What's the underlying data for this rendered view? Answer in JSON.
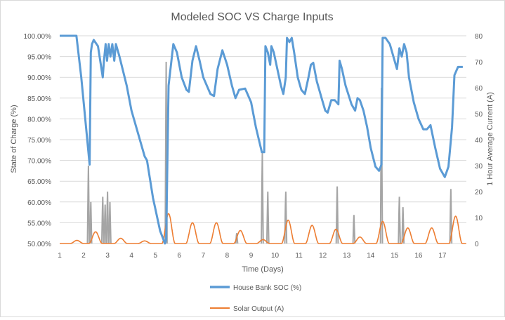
{
  "chart_data": {
    "type": "line",
    "title": "Modeled SOC VS Charge Inputs",
    "xlabel": "Time (Days)",
    "ylabel_left": "State of Charge (%)",
    "ylabel_right": "1 Hour Average Current (A)",
    "x_ticks": [
      "1",
      "2",
      "3",
      "4",
      "5",
      "6",
      "7",
      "8",
      "9",
      "10",
      "11",
      "12",
      "13",
      "14",
      "15",
      "16",
      "17"
    ],
    "xlim": [
      1,
      18
    ],
    "y_left_ticks": [
      "50.00%",
      "55.00%",
      "60.00%",
      "65.00%",
      "70.00%",
      "75.00%",
      "80.00%",
      "85.00%",
      "90.00%",
      "95.00%",
      "100.00%"
    ],
    "ylim_left": [
      0.5,
      1.0
    ],
    "y_right_ticks": [
      "0",
      "10",
      "20",
      "30",
      "40",
      "50",
      "60",
      "70",
      "80"
    ],
    "ylim_right": [
      0,
      80
    ],
    "grid": true,
    "legend_position": "bottom",
    "legend": [
      {
        "name": "House Bank SOC (%)",
        "color": "#5b9bd5"
      },
      {
        "name": "Solar Output (A)",
        "color": "#ed7d31"
      }
    ],
    "series": [
      {
        "name": "House Bank SOC (%)",
        "axis": "left",
        "color": "#5b9bd5",
        "points": [
          [
            1.0,
            1.0
          ],
          [
            1.7,
            1.0
          ],
          [
            1.9,
            0.9
          ],
          [
            2.1,
            0.78
          ],
          [
            2.2,
            0.72
          ],
          [
            2.25,
            0.69
          ],
          [
            2.3,
            0.96
          ],
          [
            2.35,
            0.98
          ],
          [
            2.42,
            0.99
          ],
          [
            2.6,
            0.975
          ],
          [
            2.72,
            0.93
          ],
          [
            2.8,
            0.9
          ],
          [
            2.85,
            0.94
          ],
          [
            2.92,
            0.98
          ],
          [
            2.98,
            0.94
          ],
          [
            3.05,
            0.98
          ],
          [
            3.12,
            0.95
          ],
          [
            3.2,
            0.98
          ],
          [
            3.28,
            0.94
          ],
          [
            3.35,
            0.98
          ],
          [
            3.5,
            0.95
          ],
          [
            3.8,
            0.88
          ],
          [
            4.0,
            0.82
          ],
          [
            4.3,
            0.76
          ],
          [
            4.55,
            0.71
          ],
          [
            4.65,
            0.7
          ],
          [
            4.9,
            0.61
          ],
          [
            5.2,
            0.53
          ],
          [
            5.4,
            0.5
          ],
          [
            5.45,
            0.51
          ],
          [
            5.55,
            0.88
          ],
          [
            5.75,
            0.98
          ],
          [
            5.9,
            0.96
          ],
          [
            6.1,
            0.9
          ],
          [
            6.3,
            0.87
          ],
          [
            6.4,
            0.865
          ],
          [
            6.55,
            0.94
          ],
          [
            6.7,
            0.975
          ],
          [
            6.85,
            0.94
          ],
          [
            7.0,
            0.9
          ],
          [
            7.3,
            0.86
          ],
          [
            7.45,
            0.855
          ],
          [
            7.6,
            0.92
          ],
          [
            7.8,
            0.965
          ],
          [
            8.0,
            0.93
          ],
          [
            8.2,
            0.88
          ],
          [
            8.35,
            0.85
          ],
          [
            8.5,
            0.87
          ],
          [
            8.75,
            0.873
          ],
          [
            9.0,
            0.84
          ],
          [
            9.2,
            0.78
          ],
          [
            9.45,
            0.72
          ],
          [
            9.55,
            0.72
          ],
          [
            9.6,
            0.975
          ],
          [
            9.7,
            0.96
          ],
          [
            9.8,
            0.93
          ],
          [
            9.85,
            0.975
          ],
          [
            9.95,
            0.96
          ],
          [
            10.1,
            0.92
          ],
          [
            10.25,
            0.88
          ],
          [
            10.35,
            0.86
          ],
          [
            10.45,
            0.9
          ],
          [
            10.5,
            0.995
          ],
          [
            10.6,
            0.985
          ],
          [
            10.7,
            0.995
          ],
          [
            10.8,
            0.96
          ],
          [
            10.95,
            0.9
          ],
          [
            11.1,
            0.87
          ],
          [
            11.25,
            0.86
          ],
          [
            11.4,
            0.9
          ],
          [
            11.5,
            0.93
          ],
          [
            11.6,
            0.935
          ],
          [
            11.75,
            0.89
          ],
          [
            11.95,
            0.85
          ],
          [
            12.1,
            0.82
          ],
          [
            12.2,
            0.815
          ],
          [
            12.35,
            0.845
          ],
          [
            12.5,
            0.845
          ],
          [
            12.65,
            0.835
          ],
          [
            12.7,
            0.94
          ],
          [
            12.8,
            0.92
          ],
          [
            12.95,
            0.88
          ],
          [
            13.2,
            0.835
          ],
          [
            13.35,
            0.82
          ],
          [
            13.45,
            0.85
          ],
          [
            13.55,
            0.845
          ],
          [
            13.7,
            0.82
          ],
          [
            13.85,
            0.78
          ],
          [
            14.0,
            0.73
          ],
          [
            14.2,
            0.685
          ],
          [
            14.35,
            0.675
          ],
          [
            14.45,
            0.69
          ],
          [
            14.5,
            0.995
          ],
          [
            14.62,
            0.995
          ],
          [
            14.8,
            0.98
          ],
          [
            14.95,
            0.95
          ],
          [
            15.1,
            0.92
          ],
          [
            15.2,
            0.97
          ],
          [
            15.3,
            0.95
          ],
          [
            15.4,
            0.98
          ],
          [
            15.5,
            0.96
          ],
          [
            15.6,
            0.9
          ],
          [
            15.8,
            0.84
          ],
          [
            16.0,
            0.8
          ],
          [
            16.2,
            0.775
          ],
          [
            16.35,
            0.775
          ],
          [
            16.5,
            0.785
          ],
          [
            16.7,
            0.73
          ],
          [
            16.9,
            0.68
          ],
          [
            17.1,
            0.66
          ],
          [
            17.25,
            0.685
          ],
          [
            17.4,
            0.78
          ],
          [
            17.5,
            0.905
          ],
          [
            17.65,
            0.925
          ],
          [
            17.85,
            0.925
          ]
        ]
      },
      {
        "name": "Solar Output (A)",
        "axis": "right",
        "color": "#ed7d31",
        "peaks": [
          [
            1.72,
            1.2
          ],
          [
            2.5,
            4.5
          ],
          [
            3.55,
            2.0
          ],
          [
            4.55,
            1.0
          ],
          [
            5.55,
            11.5
          ],
          [
            6.55,
            8.0
          ],
          [
            7.55,
            8.0
          ],
          [
            8.55,
            5.0
          ],
          [
            9.5,
            1.5
          ],
          [
            10.55,
            9.0
          ],
          [
            11.55,
            7.0
          ],
          [
            12.55,
            5.5
          ],
          [
            13.55,
            2.5
          ],
          [
            14.5,
            8.5
          ],
          [
            15.55,
            6.0
          ],
          [
            16.55,
            6.0
          ],
          [
            17.55,
            10.5
          ]
        ]
      },
      {
        "name": "Charge Input",
        "axis": "right",
        "color": "#a5a5a5",
        "spikes": [
          [
            2.2,
            30
          ],
          [
            2.3,
            16
          ],
          [
            2.8,
            18
          ],
          [
            2.9,
            15
          ],
          [
            3.0,
            20
          ],
          [
            3.1,
            16
          ],
          [
            5.45,
            70
          ],
          [
            8.4,
            4
          ],
          [
            9.47,
            35
          ],
          [
            9.7,
            20
          ],
          [
            10.45,
            20
          ],
          [
            12.6,
            22
          ],
          [
            13.3,
            11
          ],
          [
            14.45,
            60
          ],
          [
            15.2,
            18
          ],
          [
            15.35,
            14
          ],
          [
            17.35,
            21
          ]
        ]
      }
    ]
  }
}
